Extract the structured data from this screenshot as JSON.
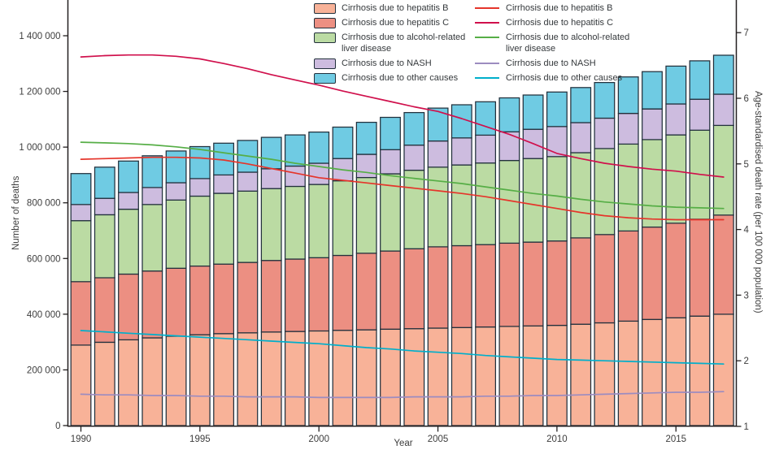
{
  "figure": {
    "background": "#ffffff",
    "bar_outline_color": "#22303c",
    "axis_color": "#231f20",
    "text_color": "#3d3d3d"
  },
  "axes": {
    "left": {
      "title": "Number of deaths",
      "tick_values": [
        0,
        200000,
        400000,
        600000,
        800000,
        1000000,
        1200000,
        1400000
      ],
      "tick_labels": [
        "0",
        "200 000",
        "400 000",
        "600 000",
        "800 000",
        "1 000 000",
        "1 200 000",
        "1 400 000"
      ]
    },
    "right": {
      "title": "Age-standardised death rate (per 100 000 population)",
      "tick_values": [
        1,
        2,
        3,
        4,
        5,
        6,
        7
      ],
      "tick_labels": [
        "1",
        "2",
        "3",
        "4",
        "5",
        "6",
        "7"
      ]
    },
    "bottom": {
      "title": "Year",
      "tick_values": [
        1990,
        1995,
        2000,
        2005,
        2010,
        2015
      ],
      "tick_labels": [
        "1990",
        "1995",
        "2000",
        "2005",
        "2010",
        "2015"
      ]
    }
  },
  "chart_data": [
    {
      "type": "bar",
      "stacked": true,
      "axis": "left",
      "ylabel": "Number of deaths",
      "ylim": [
        0,
        1530000
      ],
      "grid": false,
      "categories": [
        1990,
        1991,
        1992,
        1993,
        1994,
        1995,
        1996,
        1997,
        1998,
        1999,
        2000,
        2001,
        2002,
        2003,
        2004,
        2005,
        2006,
        2007,
        2008,
        2009,
        2010,
        2011,
        2012,
        2013,
        2014,
        2015,
        2016,
        2017
      ],
      "series": [
        {
          "key": "hepatitis-b",
          "name": "Cirrhosis due to hepatitis B",
          "color": "#F8B298",
          "values": [
            289000,
            299000,
            308000,
            315000,
            321000,
            326000,
            330000,
            333000,
            336000,
            338000,
            340000,
            342000,
            344000,
            346000,
            348000,
            350000,
            352000,
            354000,
            356000,
            358000,
            360000,
            364000,
            369000,
            375000,
            381000,
            387000,
            393000,
            400000
          ]
        },
        {
          "key": "hepatitis-c",
          "name": "Cirrhosis due to hepatitis C",
          "color": "#EC8F82",
          "values": [
            228000,
            232000,
            236000,
            240000,
            244000,
            247000,
            250000,
            253000,
            257000,
            260000,
            263000,
            269000,
            275000,
            281000,
            287000,
            292000,
            294000,
            296000,
            299000,
            301000,
            303000,
            310000,
            317000,
            324000,
            332000,
            340000,
            348000,
            356000
          ]
        },
        {
          "key": "alcohol",
          "name": "Cirrhosis due to alcohol-related liver disease",
          "color": "#BBDBA3",
          "values": [
            219000,
            226000,
            233000,
            239000,
            245000,
            251000,
            254000,
            256000,
            258000,
            261000,
            263000,
            268000,
            272000,
            277000,
            282000,
            286000,
            290000,
            293000,
            297000,
            300000,
            303000,
            306000,
            309000,
            312000,
            314000,
            317000,
            320000,
            322000
          ]
        },
        {
          "key": "nash",
          "name": "Cirrhosis due to NASH",
          "color": "#CDBCDF",
          "values": [
            58000,
            59000,
            60000,
            61000,
            62000,
            63000,
            66000,
            68000,
            71000,
            73000,
            76000,
            80000,
            83000,
            87000,
            90000,
            94000,
            97000,
            100000,
            103000,
            105000,
            108000,
            108000,
            109000,
            110000,
            110000,
            111000,
            111000,
            112000
          ]
        },
        {
          "key": "other-causes",
          "name": "Cirrhosis due to other causes",
          "color": "#6FCBE3",
          "values": [
            111000,
            112000,
            113000,
            114000,
            114000,
            115000,
            114000,
            114000,
            113000,
            112000,
            112000,
            113000,
            115000,
            116000,
            117000,
            118000,
            119000,
            120000,
            122000,
            123000,
            124000,
            126000,
            128000,
            131000,
            134000,
            136000,
            138000,
            140000
          ]
        }
      ]
    },
    {
      "type": "line",
      "axis": "right",
      "ylabel": "Age-standardised death rate (per 100 000 population)",
      "ylim": [
        1,
        7
      ],
      "grid": false,
      "categories": [
        1990,
        1991,
        1992,
        1993,
        1994,
        1995,
        1996,
        1997,
        1998,
        1999,
        2000,
        2001,
        2002,
        2003,
        2004,
        2005,
        2006,
        2007,
        2008,
        2009,
        2010,
        2011,
        2012,
        2013,
        2014,
        2015,
        2016,
        2017
      ],
      "series": [
        {
          "key": "hepatitis-b",
          "name": "Cirrhosis due to hepatitis B",
          "color": "#E5352B",
          "values": [
            5.07,
            5.08,
            5.09,
            5.1,
            5.1,
            5.09,
            5.06,
            5.0,
            4.93,
            4.86,
            4.79,
            4.75,
            4.71,
            4.67,
            4.63,
            4.59,
            4.55,
            4.5,
            4.44,
            4.38,
            4.32,
            4.26,
            4.21,
            4.18,
            4.16,
            4.15,
            4.15,
            4.15
          ]
        },
        {
          "key": "hepatitis-c",
          "name": "Cirrhosis due to hepatitis C",
          "color": "#D0104C",
          "values": [
            6.63,
            6.65,
            6.66,
            6.66,
            6.64,
            6.6,
            6.53,
            6.45,
            6.36,
            6.28,
            6.2,
            6.11,
            6.03,
            5.95,
            5.87,
            5.8,
            5.69,
            5.57,
            5.45,
            5.31,
            5.16,
            5.08,
            5.01,
            4.96,
            4.92,
            4.89,
            4.84,
            4.8
          ]
        },
        {
          "key": "alcohol",
          "name": "Cirrhosis due to alcohol-related liver disease",
          "color": "#56AE46",
          "values": [
            5.33,
            5.32,
            5.31,
            5.29,
            5.26,
            5.22,
            5.17,
            5.12,
            5.07,
            5.01,
            4.96,
            4.91,
            4.87,
            4.82,
            4.78,
            4.74,
            4.7,
            4.65,
            4.6,
            4.55,
            4.51,
            4.46,
            4.42,
            4.39,
            4.36,
            4.34,
            4.33,
            4.32
          ]
        },
        {
          "key": "nash",
          "name": "Cirrhosis due to NASH",
          "color": "#9C8CC0",
          "values": [
            1.49,
            1.48,
            1.48,
            1.47,
            1.47,
            1.46,
            1.46,
            1.45,
            1.45,
            1.45,
            1.44,
            1.44,
            1.44,
            1.44,
            1.45,
            1.45,
            1.45,
            1.46,
            1.46,
            1.47,
            1.47,
            1.48,
            1.49,
            1.5,
            1.51,
            1.52,
            1.52,
            1.53
          ]
        },
        {
          "key": "other-causes",
          "name": "Cirrhosis due to other causes",
          "color": "#00AFCB",
          "values": [
            2.46,
            2.44,
            2.42,
            2.4,
            2.38,
            2.36,
            2.34,
            2.32,
            2.3,
            2.28,
            2.26,
            2.23,
            2.2,
            2.18,
            2.15,
            2.13,
            2.11,
            2.08,
            2.06,
            2.04,
            2.02,
            2.01,
            2.0,
            1.99,
            1.98,
            1.97,
            1.96,
            1.95
          ]
        }
      ]
    }
  ]
}
